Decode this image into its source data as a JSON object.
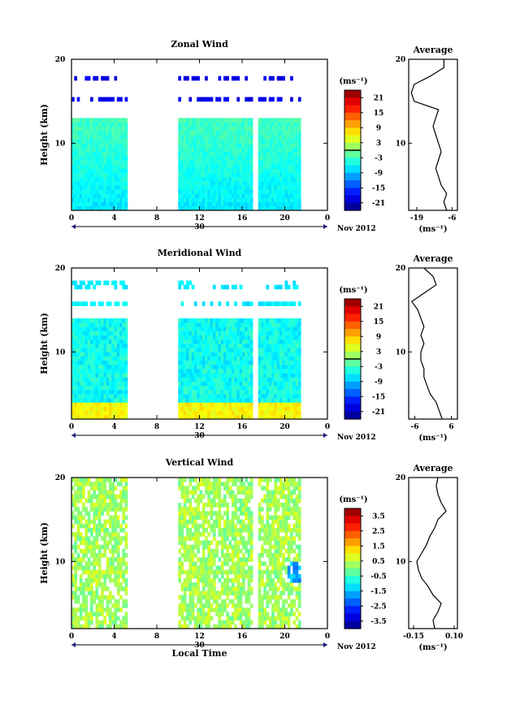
{
  "chart_data": [
    {
      "type": "heatmap",
      "title": "Zonal Wind",
      "xlabel": "",
      "ylabel": "Height (km)",
      "xlim": [
        0,
        24
      ],
      "ylim": [
        2,
        20
      ],
      "x_ticks": [
        "0",
        "4",
        "8",
        "12",
        "16",
        "20",
        "0"
      ],
      "y_ticks": [
        "20",
        "10"
      ],
      "date_label": "30",
      "month_label": "Nov 2012",
      "colorbar": {
        "unit": "(ms⁻¹)",
        "ticks": [
          "21",
          "15",
          "9",
          "3",
          "-3",
          "-9",
          "-15",
          "-21"
        ],
        "range": [
          -24,
          24
        ],
        "contour_level": 0
      },
      "data_gaps": [
        [
          5.2,
          9.8
        ],
        [
          17.0,
          17.3
        ],
        [
          17.8,
          18.0
        ],
        [
          21.4,
          24
        ]
      ],
      "average_profile": {
        "title": "Average",
        "xlabel": "(ms⁻¹)",
        "x_ticks": [
          "-19",
          "-6"
        ],
        "xlim": [
          -22,
          -4
        ],
        "height": [
          2,
          3,
          4,
          5,
          6,
          7,
          8,
          9,
          10,
          11,
          12,
          13,
          14,
          15,
          16,
          17,
          18,
          19,
          20
        ],
        "values": [
          -8,
          -9,
          -8,
          -10,
          -11,
          -12,
          -11,
          -10,
          -11,
          -12,
          -13,
          -12,
          -11,
          -20,
          -21,
          -20,
          -14,
          -9,
          -9
        ]
      }
    },
    {
      "type": "heatmap",
      "title": "Meridional Wind",
      "xlabel": "",
      "ylabel": "Height (km)",
      "xlim": [
        0,
        24
      ],
      "ylim": [
        2,
        20
      ],
      "x_ticks": [
        "0",
        "4",
        "8",
        "12",
        "16",
        "20",
        "0"
      ],
      "y_ticks": [
        "20",
        "10"
      ],
      "date_label": "30",
      "month_label": "Nov 2012",
      "colorbar": {
        "unit": "(ms⁻¹)",
        "ticks": [
          "21",
          "15",
          "9",
          "3",
          "-3",
          "-9",
          "-15",
          "-21"
        ],
        "range": [
          -24,
          24
        ],
        "contour_level": 0
      },
      "data_gaps": [
        [
          5.2,
          9.8
        ],
        [
          17.0,
          17.3
        ],
        [
          17.8,
          18.0
        ],
        [
          21.4,
          24
        ]
      ],
      "average_profile": {
        "title": "Average",
        "xlabel": "(ms⁻¹)",
        "x_ticks": [
          "-6",
          "6"
        ],
        "xlim": [
          -8,
          8
        ],
        "height": [
          2,
          3,
          4,
          5,
          6,
          7,
          8,
          9,
          10,
          11,
          12,
          13,
          14,
          15,
          16,
          17,
          18,
          19,
          20
        ],
        "values": [
          3,
          2,
          1,
          -1,
          -2,
          -3,
          -3,
          -4,
          -4,
          -3,
          -4,
          -3,
          -4,
          -5,
          -7,
          -3,
          1,
          0,
          -3
        ]
      }
    },
    {
      "type": "heatmap",
      "title": "Vertical Wind",
      "xlabel": "Local Time",
      "ylabel": "Height (km)",
      "xlim": [
        0,
        24
      ],
      "ylim": [
        2,
        20
      ],
      "x_ticks": [
        "0",
        "4",
        "8",
        "12",
        "16",
        "20",
        "0"
      ],
      "y_ticks": [
        "20",
        "10"
      ],
      "date_label": "30",
      "month_label": "Nov 2012",
      "colorbar": {
        "unit": "(ms⁻¹)",
        "ticks": [
          "3.5",
          "2.5",
          "1.5",
          "0.5",
          "-0.5",
          "-1.5",
          "-2.5",
          "-3.5"
        ],
        "range": [
          -4,
          4
        ],
        "contour_level": null
      },
      "data_gaps": [
        [
          5.2,
          9.8
        ],
        [
          17.0,
          17.3
        ],
        [
          17.8,
          18.0
        ],
        [
          21.4,
          24
        ]
      ],
      "average_profile": {
        "title": "Average",
        "xlabel": "(ms⁻¹)",
        "x_ticks": [
          "-0.15",
          "0.10"
        ],
        "xlim": [
          -0.18,
          0.12
        ],
        "height": [
          2,
          3,
          4,
          5,
          6,
          7,
          8,
          9,
          10,
          11,
          12,
          13,
          14,
          15,
          16,
          17,
          18,
          19,
          20
        ],
        "values": [
          -0.02,
          -0.03,
          0.0,
          0.02,
          -0.03,
          -0.06,
          -0.1,
          -0.12,
          -0.13,
          -0.1,
          -0.07,
          -0.05,
          -0.02,
          0.0,
          0.05,
          0.02,
          0.0,
          -0.01,
          0.0
        ]
      }
    }
  ]
}
